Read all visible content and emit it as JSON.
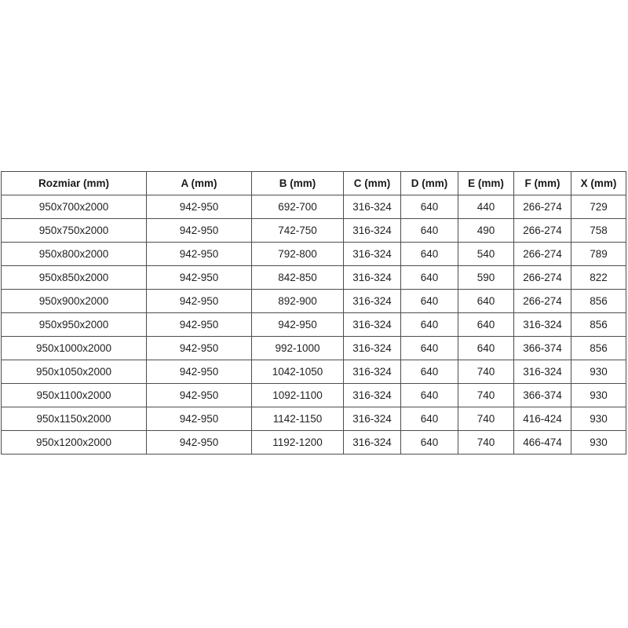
{
  "table": {
    "headers": [
      "Rozmiar (mm)",
      "A (mm)",
      "B (mm)",
      "C (mm)",
      "D (mm)",
      "E (mm)",
      "F (mm)",
      "X (mm)"
    ],
    "rows": [
      [
        "950x700x2000",
        "942-950",
        "692-700",
        "316-324",
        "640",
        "440",
        "266-274",
        "729"
      ],
      [
        "950x750x2000",
        "942-950",
        "742-750",
        "316-324",
        "640",
        "490",
        "266-274",
        "758"
      ],
      [
        "950x800x2000",
        "942-950",
        "792-800",
        "316-324",
        "640",
        "540",
        "266-274",
        "789"
      ],
      [
        "950x850x2000",
        "942-950",
        "842-850",
        "316-324",
        "640",
        "590",
        "266-274",
        "822"
      ],
      [
        "950x900x2000",
        "942-950",
        "892-900",
        "316-324",
        "640",
        "640",
        "266-274",
        "856"
      ],
      [
        "950x950x2000",
        "942-950",
        "942-950",
        "316-324",
        "640",
        "640",
        "316-324",
        "856"
      ],
      [
        "950x1000x2000",
        "942-950",
        "992-1000",
        "316-324",
        "640",
        "640",
        "366-374",
        "856"
      ],
      [
        "950x1050x2000",
        "942-950",
        "1042-1050",
        "316-324",
        "640",
        "740",
        "316-324",
        "930"
      ],
      [
        "950x1100x2000",
        "942-950",
        "1092-1100",
        "316-324",
        "640",
        "740",
        "366-374",
        "930"
      ],
      [
        "950x1150x2000",
        "942-950",
        "1142-1150",
        "316-324",
        "640",
        "740",
        "416-424",
        "930"
      ],
      [
        "950x1200x2000",
        "942-950",
        "1192-1200",
        "316-324",
        "640",
        "740",
        "466-474",
        "930"
      ]
    ]
  },
  "chart_data": {
    "type": "table",
    "title": "",
    "columns": [
      "Rozmiar (mm)",
      "A (mm)",
      "B (mm)",
      "C (mm)",
      "D (mm)",
      "E (mm)",
      "F (mm)",
      "X (mm)"
    ],
    "rows": [
      [
        "950x700x2000",
        "942-950",
        "692-700",
        "316-324",
        "640",
        "440",
        "266-274",
        "729"
      ],
      [
        "950x750x2000",
        "942-950",
        "742-750",
        "316-324",
        "640",
        "490",
        "266-274",
        "758"
      ],
      [
        "950x800x2000",
        "942-950",
        "792-800",
        "316-324",
        "640",
        "540",
        "266-274",
        "789"
      ],
      [
        "950x850x2000",
        "942-950",
        "842-850",
        "316-324",
        "640",
        "590",
        "266-274",
        "822"
      ],
      [
        "950x900x2000",
        "942-950",
        "892-900",
        "316-324",
        "640",
        "640",
        "266-274",
        "856"
      ],
      [
        "950x950x2000",
        "942-950",
        "942-950",
        "316-324",
        "640",
        "640",
        "316-324",
        "856"
      ],
      [
        "950x1000x2000",
        "942-950",
        "992-1000",
        "316-324",
        "640",
        "640",
        "366-374",
        "856"
      ],
      [
        "950x1050x2000",
        "942-950",
        "1042-1050",
        "316-324",
        "640",
        "740",
        "316-324",
        "930"
      ],
      [
        "950x1100x2000",
        "942-950",
        "1092-1100",
        "316-324",
        "640",
        "740",
        "366-374",
        "930"
      ],
      [
        "950x1150x2000",
        "942-950",
        "1142-1150",
        "316-324",
        "640",
        "740",
        "416-424",
        "930"
      ],
      [
        "950x1200x2000",
        "942-950",
        "1192-1200",
        "316-324",
        "640",
        "740",
        "466-474",
        "930"
      ]
    ],
    "colors": {
      "border": "#4d4d4d",
      "text": "#222222",
      "background": "#ffffff"
    }
  }
}
